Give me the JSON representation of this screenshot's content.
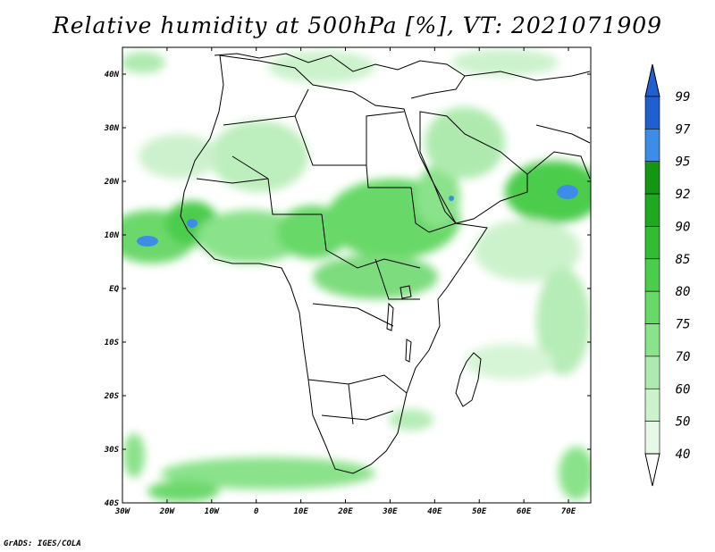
{
  "title": "Relative humidity at 500hPa [%], VT: 2021071909",
  "credit": "GrADS: IGES/COLA",
  "map": {
    "lon_range": [
      -30,
      75
    ],
    "lat_range": [
      -40,
      45
    ],
    "lon_ticks": [
      "30W",
      "20W",
      "10W",
      "0",
      "10E",
      "20E",
      "30E",
      "40E",
      "50E",
      "60E",
      "70E"
    ],
    "lat_ticks": [
      "40N",
      "30N",
      "20N",
      "10N",
      "EQ",
      "10S",
      "20S",
      "30S",
      "40S"
    ]
  },
  "colorbar": {
    "labels": [
      "99",
      "97",
      "95",
      "92",
      "90",
      "85",
      "80",
      "75",
      "70",
      "60",
      "50",
      "40"
    ],
    "colors": [
      "#1f5fcf",
      "#3c8ce8",
      "#149614",
      "#21a821",
      "#33bb33",
      "#4ccc4c",
      "#68d868",
      "#8ae28a",
      "#aeeaae",
      "#ccf2cc",
      "#e6f9e6"
    ],
    "top_arrow_color": "#1f5fcf",
    "bottom_arrow_color": "#ffffff"
  }
}
